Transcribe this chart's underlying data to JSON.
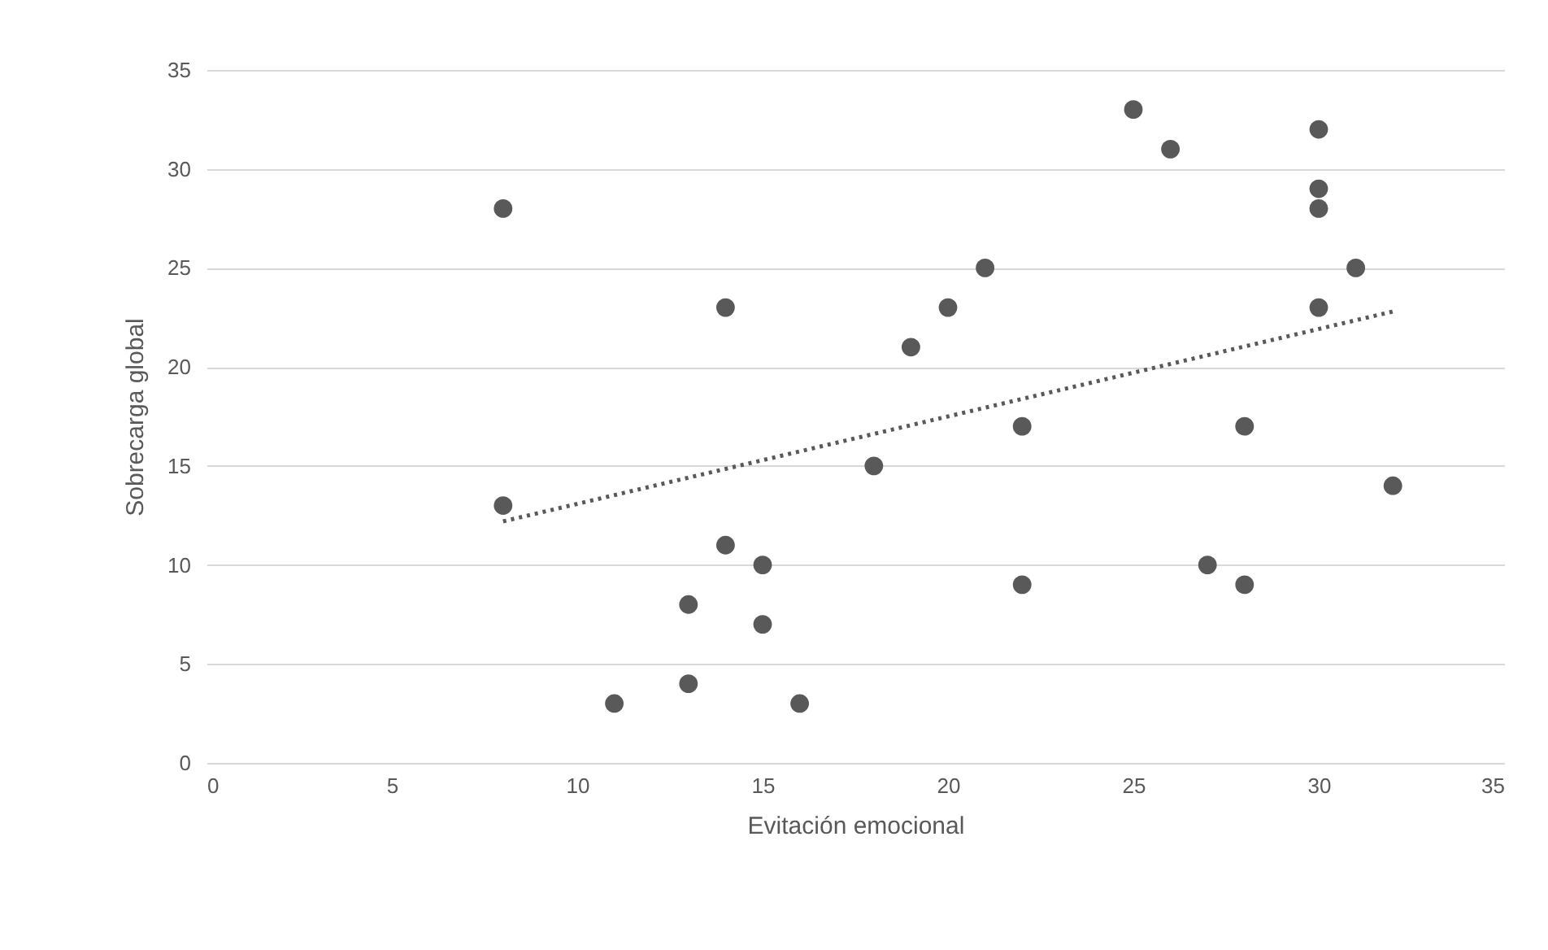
{
  "chart_data": {
    "type": "scatter",
    "xlabel": "Evitación emocional",
    "ylabel": "Sobrecarga global",
    "xlim": [
      0,
      35
    ],
    "xticks": [
      0,
      5,
      10,
      15,
      20,
      25,
      30,
      35
    ],
    "ylim": [
      0,
      35
    ],
    "yticks": [
      0,
      5,
      10,
      15,
      20,
      25,
      30,
      35
    ],
    "grid": "y",
    "marker": "circle",
    "series": [
      {
        "color": "#595959",
        "x": [
          8,
          8,
          11,
          13,
          13,
          14,
          14,
          15,
          15,
          16,
          18,
          19,
          20,
          21,
          22,
          22,
          25,
          26,
          27,
          28,
          28,
          30,
          30,
          30,
          30,
          31,
          32
        ],
        "values": [
          28,
          13,
          3,
          8,
          4,
          23,
          11,
          10,
          7,
          3,
          15,
          21,
          23,
          25,
          17,
          9,
          33,
          31,
          10,
          17,
          9,
          32,
          29,
          28,
          23,
          25,
          14
        ]
      },
      {
        "type": "line",
        "color": "#595959",
        "line_style": "dotted",
        "marker": "none",
        "x": [
          8,
          32
        ],
        "values": [
          12.2,
          22.8
        ]
      }
    ]
  }
}
